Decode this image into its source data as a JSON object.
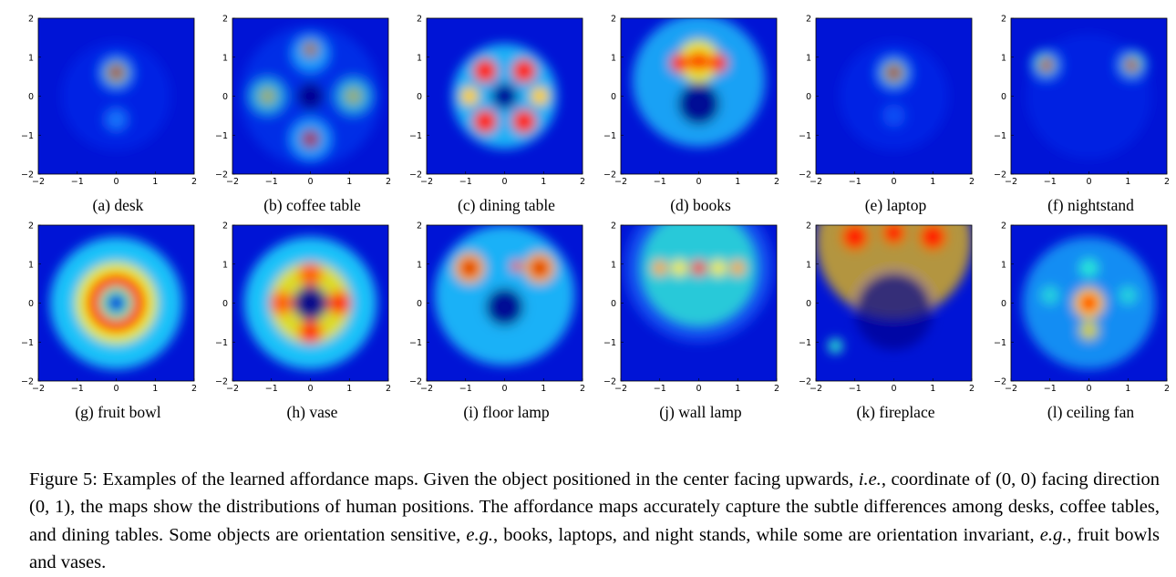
{
  "figure": {
    "panels": [
      {
        "caption": "(a) desk"
      },
      {
        "caption": "(b) coffee table"
      },
      {
        "caption": "(c) dining table"
      },
      {
        "caption": "(d) books"
      },
      {
        "caption": "(e) laptop"
      },
      {
        "caption": "(f) nightstand"
      },
      {
        "caption": "(g) fruit bowl"
      },
      {
        "caption": "(h) vase"
      },
      {
        "caption": "(i) floor lamp"
      },
      {
        "caption": "(j) wall lamp"
      },
      {
        "caption": "(k) fireplace"
      },
      {
        "caption": "(l) ceiling fan"
      }
    ],
    "axis_ticks": [
      "−2",
      "−1",
      "0",
      "1",
      "2"
    ],
    "colormap": "jet"
  },
  "caption": {
    "t1": "Figure 5: Examples of the learned affordance maps. Given the object positioned in the center facing upwards, ",
    "ie": "i.e.",
    "t2": ", coordinate of (0, 0) facing direction (0, 1), the maps show the distributions of human positions. The affordance maps accurately capture the subtle differences among desks, coffee tables, and dining tables. Some objects are orientation sensitive, ",
    "eg1": "e.g.",
    "t3": ", books, laptops, and night stands, while some are orientation invariant, ",
    "eg2": "e.g.",
    "t4": ", fruit bowls and vases."
  }
}
